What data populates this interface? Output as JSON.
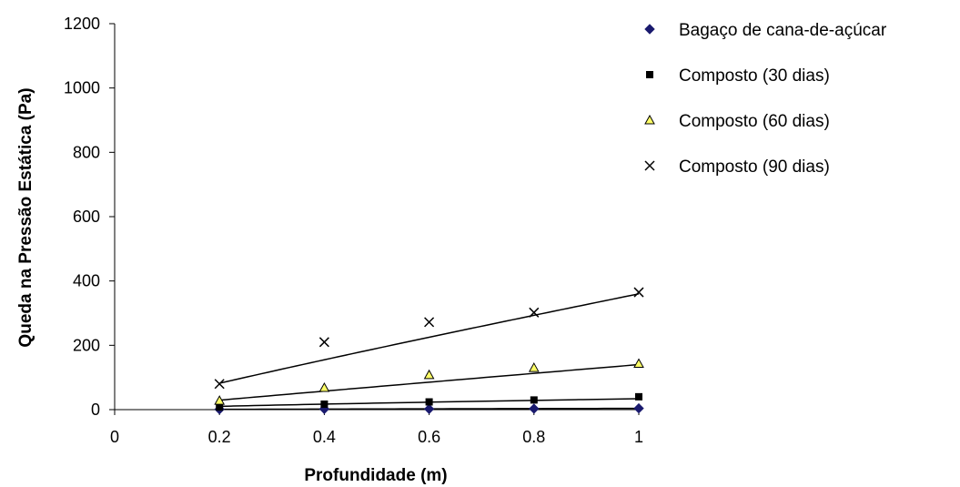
{
  "chart_data": {
    "type": "scatter",
    "xlabel": "Profundidade (m)",
    "ylabel": "Queda na Pressão Estática (Pa)",
    "xlim": [
      0,
      1
    ],
    "ylim": [
      0,
      1200
    ],
    "xticks": [
      "0",
      "0.2",
      "0.4",
      "0.6",
      "0.8",
      "1"
    ],
    "yticks": [
      "0",
      "200",
      "400",
      "600",
      "800",
      "1000",
      "1200"
    ],
    "legend_position": "right",
    "grid": false,
    "trendlines": "power",
    "series": [
      {
        "name": "Bagaço de cana-de-açúcar",
        "marker": "diamond",
        "color": "#1a1a6e",
        "x": [
          0.2,
          0.4,
          0.6,
          0.8,
          1.0
        ],
        "y": [
          1,
          2,
          2,
          3,
          4
        ],
        "fit": {
          "a": 4,
          "b": 0.9
        }
      },
      {
        "name": "Composto (30 dias)",
        "marker": "square",
        "color": "#000000",
        "x": [
          0.2,
          0.4,
          0.6,
          0.8,
          1.0
        ],
        "y": [
          8,
          17,
          24,
          30,
          40
        ],
        "fit": {
          "a": 34,
          "b": 0.75
        }
      },
      {
        "name": "Composto (60 dias)",
        "marker": "triangle",
        "color": "#ffff66",
        "x": [
          0.2,
          0.4,
          0.6,
          0.8,
          1.0
        ],
        "y": [
          28,
          68,
          108,
          130,
          143
        ],
        "fit": {
          "a": 140,
          "b": 0.97
        }
      },
      {
        "name": "Composto (90 dias)",
        "marker": "x",
        "color": "#000000",
        "x": [
          0.2,
          0.4,
          0.6,
          0.8,
          1.0
        ],
        "y": [
          80,
          210,
          272,
          302,
          365
        ],
        "fit": {
          "a": 360,
          "b": 0.92
        }
      }
    ]
  }
}
